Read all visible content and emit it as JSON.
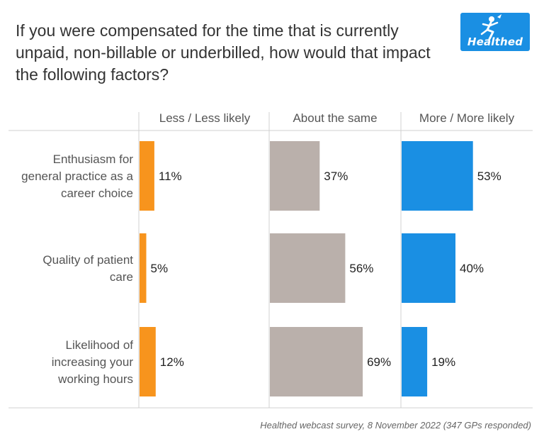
{
  "title": "If you were compensated for the time that is currently unpaid, non-billable or underbilled, how would that impact the following factors?",
  "logo": {
    "text": "Healthed",
    "icon": "runner-figure-icon",
    "color": "#1a8fe3"
  },
  "source": "Healthed webcast survey, 8 November 2022 (347 GPs responded)",
  "chart_data": {
    "type": "bar",
    "orientation": "horizontal",
    "layout": "small-multiples",
    "categories": [
      [
        "Enthusiasm for",
        "general practice as a",
        "career choice"
      ],
      [
        "Quality of patient",
        "care"
      ],
      [
        "Likelihood of",
        "increasing your",
        "working hours"
      ]
    ],
    "series": [
      {
        "name": "Less / Less likely",
        "values": [
          11,
          5,
          12
        ],
        "color": "#f7941d"
      },
      {
        "name": "About the same",
        "values": [
          37,
          56,
          69
        ],
        "color": "#bab0ab"
      },
      {
        "name": "More / More likely",
        "values": [
          53,
          40,
          19
        ],
        "color": "#1a8fe3"
      }
    ],
    "value_suffix": "%",
    "xlim": [
      0,
      100
    ],
    "grid": false
  }
}
